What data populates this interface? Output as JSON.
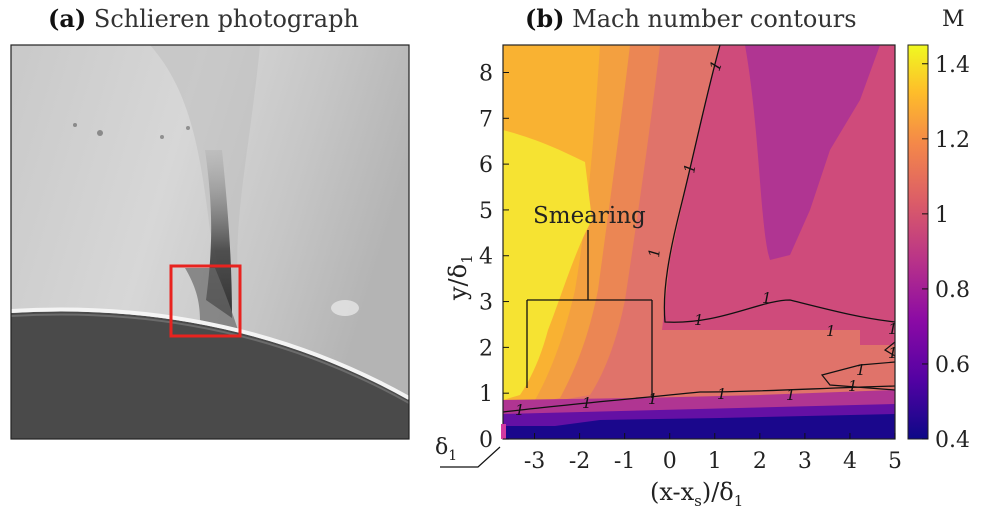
{
  "panel_a": {
    "tag": "(a)",
    "title": "Schlieren photograph"
  },
  "panel_b": {
    "tag": "(b)",
    "title": "Mach number contours"
  },
  "chart_data": {
    "type": "heatmap",
    "title": "Mach number contours",
    "xlabel": "(x-x_s)/δ_1",
    "ylabel": "y/δ_1",
    "xlim": [
      -3.7,
      5
    ],
    "ylim": [
      0,
      8.6
    ],
    "x_ticks": [
      -3,
      -2,
      -1,
      0,
      1,
      2,
      3,
      4,
      5
    ],
    "y_ticks": [
      0,
      1,
      2,
      3,
      4,
      5,
      6,
      7,
      8
    ],
    "y_extra_tick": "δ_1",
    "colorbar": {
      "label": "M",
      "range": [
        0.4,
        1.45
      ],
      "ticks": [
        0.4,
        0.6,
        0.8,
        1,
        1.2,
        1.4
      ],
      "tick_labels": [
        "0.4",
        "0.6",
        "0.8",
        "1",
        "1.2",
        "1.4"
      ],
      "colormap": [
        "#0d0887",
        "#5302a3",
        "#8b0aa5",
        "#b83289",
        "#db5c68",
        "#f48849",
        "#febd2a",
        "#f0f921"
      ]
    },
    "sonic_line_label": "1",
    "annotation": "Smearing",
    "grid": false
  },
  "colors": {
    "yellow": "#f6e332",
    "light_orange": "#f9b232",
    "orange": "#f3a040",
    "dark_orange": "#eb8654",
    "salmon": "#e0736a",
    "pink": "#cf4b7b",
    "magenta": "#b03592",
    "purple": "#6410a4",
    "dark_blue": "#1a078c",
    "highlight_box": "#e8231f"
  }
}
